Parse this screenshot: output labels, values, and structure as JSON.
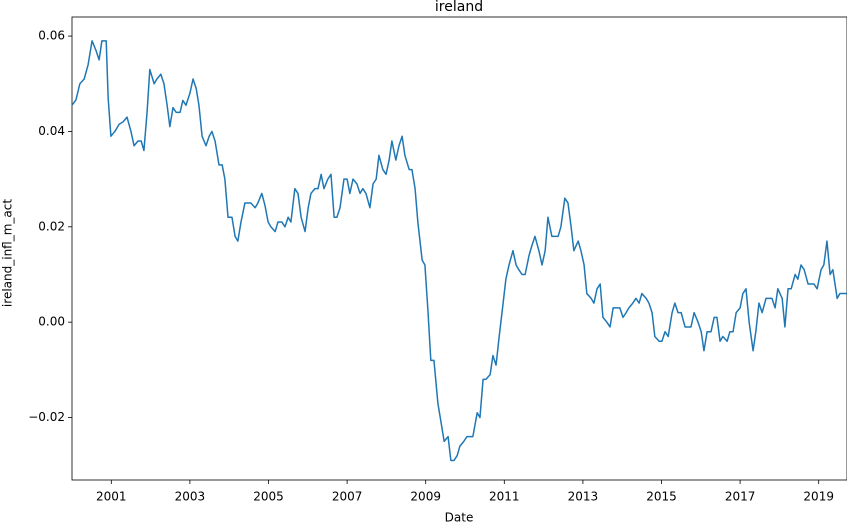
{
  "chart_data": {
    "type": "line",
    "title": "ireland",
    "x_label": "Date",
    "y_label": "ireland_infl_m_act",
    "color": "#1f77b4",
    "x": [
      2000.0,
      2000.1,
      2000.2,
      2000.31,
      2000.41,
      2000.51,
      2000.61,
      2000.69,
      2000.76,
      2000.87,
      2000.92,
      2000.99,
      2001.09,
      2001.2,
      2001.3,
      2001.4,
      2001.5,
      2001.58,
      2001.68,
      2001.76,
      2001.83,
      2001.91,
      2001.98,
      2002.09,
      2002.16,
      2002.26,
      2002.34,
      2002.42,
      2002.49,
      2002.57,
      2002.65,
      2002.75,
      2002.82,
      2002.9,
      2003.0,
      2003.08,
      2003.16,
      2003.23,
      2003.31,
      2003.41,
      2003.49,
      2003.56,
      2003.64,
      2003.74,
      2003.82,
      2003.89,
      2003.97,
      2004.07,
      2004.15,
      2004.22,
      2004.3,
      2004.4,
      2004.48,
      2004.55,
      2004.66,
      2004.73,
      2004.83,
      2004.91,
      2004.99,
      2005.06,
      2005.17,
      2005.24,
      2005.34,
      2005.42,
      2005.5,
      2005.57,
      2005.67,
      2005.75,
      2005.83,
      2005.93,
      2006.01,
      2006.08,
      2006.18,
      2006.26,
      2006.34,
      2006.41,
      2006.51,
      2006.59,
      2006.67,
      2006.74,
      2006.82,
      2006.92,
      2007.0,
      2007.07,
      2007.15,
      2007.25,
      2007.33,
      2007.4,
      2007.48,
      2007.58,
      2007.66,
      2007.74,
      2007.81,
      2007.91,
      2007.99,
      2008.07,
      2008.14,
      2008.24,
      2008.32,
      2008.4,
      2008.47,
      2008.58,
      2008.65,
      2008.73,
      2008.8,
      2008.91,
      2008.98,
      2009.06,
      2009.13,
      2009.21,
      2009.31,
      2009.39,
      2009.47,
      2009.57,
      2009.64,
      2009.72,
      2009.8,
      2009.87,
      2009.97,
      2010.05,
      2010.13,
      2010.2,
      2010.31,
      2010.38,
      2010.46,
      2010.53,
      2010.64,
      2010.71,
      2010.79,
      2010.87,
      2010.97,
      2011.04,
      2011.12,
      2011.22,
      2011.3,
      2011.37,
      2011.45,
      2011.53,
      2011.63,
      2011.7,
      2011.78,
      2011.88,
      2011.96,
      2012.04,
      2012.11,
      2012.21,
      2012.29,
      2012.37,
      2012.44,
      2012.54,
      2012.62,
      2012.7,
      2012.77,
      2012.88,
      2012.95,
      2013.03,
      2013.1,
      2013.21,
      2013.28,
      2013.36,
      2013.44,
      2013.51,
      2013.61,
      2013.69,
      2013.77,
      2013.87,
      2013.94,
      2014.02,
      2014.1,
      2014.17,
      2014.27,
      2014.35,
      2014.43,
      2014.5,
      2014.61,
      2014.68,
      2014.76,
      2014.83,
      2014.94,
      2015.01,
      2015.09,
      2015.17,
      2015.27,
      2015.34,
      2015.42,
      2015.5,
      2015.6,
      2015.67,
      2015.75,
      2015.83,
      2015.93,
      2016.01,
      2016.08,
      2016.16,
      2016.26,
      2016.34,
      2016.41,
      2016.49,
      2016.56,
      2016.67,
      2016.74,
      2016.82,
      2016.9,
      2017.0,
      2017.07,
      2017.15,
      2017.23,
      2017.33,
      2017.4,
      2017.48,
      2017.56,
      2017.66,
      2017.74,
      2017.81,
      2017.89,
      2017.96,
      2018.07,
      2018.14,
      2018.22,
      2018.3,
      2018.4,
      2018.47,
      2018.55,
      2018.63,
      2018.73,
      2018.8,
      2018.88,
      2018.96,
      2019.06,
      2019.13,
      2019.21,
      2019.29,
      2019.36,
      2019.47,
      2019.54,
      2019.72
    ],
    "values": [
      0.0455,
      0.0466,
      0.05,
      0.051,
      0.054,
      0.059,
      0.057,
      0.055,
      0.059,
      0.059,
      0.047,
      0.039,
      0.04,
      0.0415,
      0.042,
      0.043,
      0.04,
      0.037,
      0.038,
      0.038,
      0.036,
      0.044,
      0.053,
      0.05,
      0.051,
      0.052,
      0.05,
      0.0455,
      0.041,
      0.045,
      0.044,
      0.044,
      0.0465,
      0.0455,
      0.048,
      0.051,
      0.049,
      0.0455,
      0.039,
      0.037,
      0.039,
      0.04,
      0.038,
      0.033,
      0.033,
      0.03,
      0.022,
      0.022,
      0.018,
      0.017,
      0.021,
      0.025,
      0.025,
      0.025,
      0.024,
      0.025,
      0.027,
      0.0245,
      0.021,
      0.02,
      0.019,
      0.021,
      0.021,
      0.02,
      0.022,
      0.021,
      0.028,
      0.027,
      0.022,
      0.019,
      0.024,
      0.027,
      0.028,
      0.028,
      0.031,
      0.028,
      0.03,
      0.031,
      0.022,
      0.022,
      0.024,
      0.03,
      0.03,
      0.027,
      0.03,
      0.029,
      0.027,
      0.028,
      0.027,
      0.024,
      0.029,
      0.03,
      0.035,
      0.032,
      0.031,
      0.034,
      0.038,
      0.034,
      0.037,
      0.039,
      0.035,
      0.032,
      0.032,
      0.028,
      0.021,
      0.013,
      0.012,
      0.002,
      -0.008,
      -0.008,
      -0.017,
      -0.021,
      -0.025,
      -0.024,
      -0.029,
      -0.029,
      -0.028,
      -0.026,
      -0.025,
      -0.024,
      -0.024,
      -0.024,
      -0.019,
      -0.02,
      -0.012,
      -0.012,
      -0.011,
      -0.007,
      -0.009,
      -0.003,
      0.004,
      0.009,
      0.012,
      0.015,
      0.012,
      0.011,
      0.01,
      0.01,
      0.014,
      0.016,
      0.018,
      0.015,
      0.012,
      0.015,
      0.022,
      0.018,
      0.018,
      0.018,
      0.02,
      0.026,
      0.025,
      0.02,
      0.015,
      0.017,
      0.015,
      0.012,
      0.006,
      0.005,
      0.004,
      0.007,
      0.008,
      0.001,
      0.0,
      -0.001,
      0.003,
      0.003,
      0.003,
      0.001,
      0.002,
      0.003,
      0.004,
      0.005,
      0.004,
      0.006,
      0.005,
      0.004,
      0.002,
      -0.003,
      -0.004,
      -0.004,
      -0.002,
      -0.003,
      0.002,
      0.004,
      0.002,
      0.002,
      -0.001,
      -0.001,
      -0.001,
      0.002,
      0.0,
      -0.002,
      -0.006,
      -0.002,
      -0.002,
      0.001,
      0.001,
      -0.004,
      -0.003,
      -0.004,
      -0.002,
      -0.002,
      0.002,
      0.003,
      0.006,
      0.007,
      0.0,
      -0.006,
      -0.002,
      0.004,
      0.002,
      0.005,
      0.005,
      0.005,
      0.003,
      0.007,
      0.005,
      -0.001,
      0.007,
      0.007,
      0.01,
      0.009,
      0.012,
      0.011,
      0.008,
      0.008,
      0.008,
      0.007,
      0.011,
      0.012,
      0.017,
      0.01,
      0.011,
      0.005,
      0.006,
      0.006
    ],
    "xlim": [
      2000,
      2019.72
    ],
    "xticks": [
      2001,
      2003,
      2005,
      2007,
      2009,
      2011,
      2013,
      2015,
      2017,
      2019
    ],
    "ylim": [
      -0.0331,
      0.064
    ],
    "yticks": [
      {
        "value": -0.02,
        "label": "−0.02"
      },
      {
        "value": 0,
        "label": "0.00"
      },
      0.02,
      0.04,
      0.06
    ]
  }
}
